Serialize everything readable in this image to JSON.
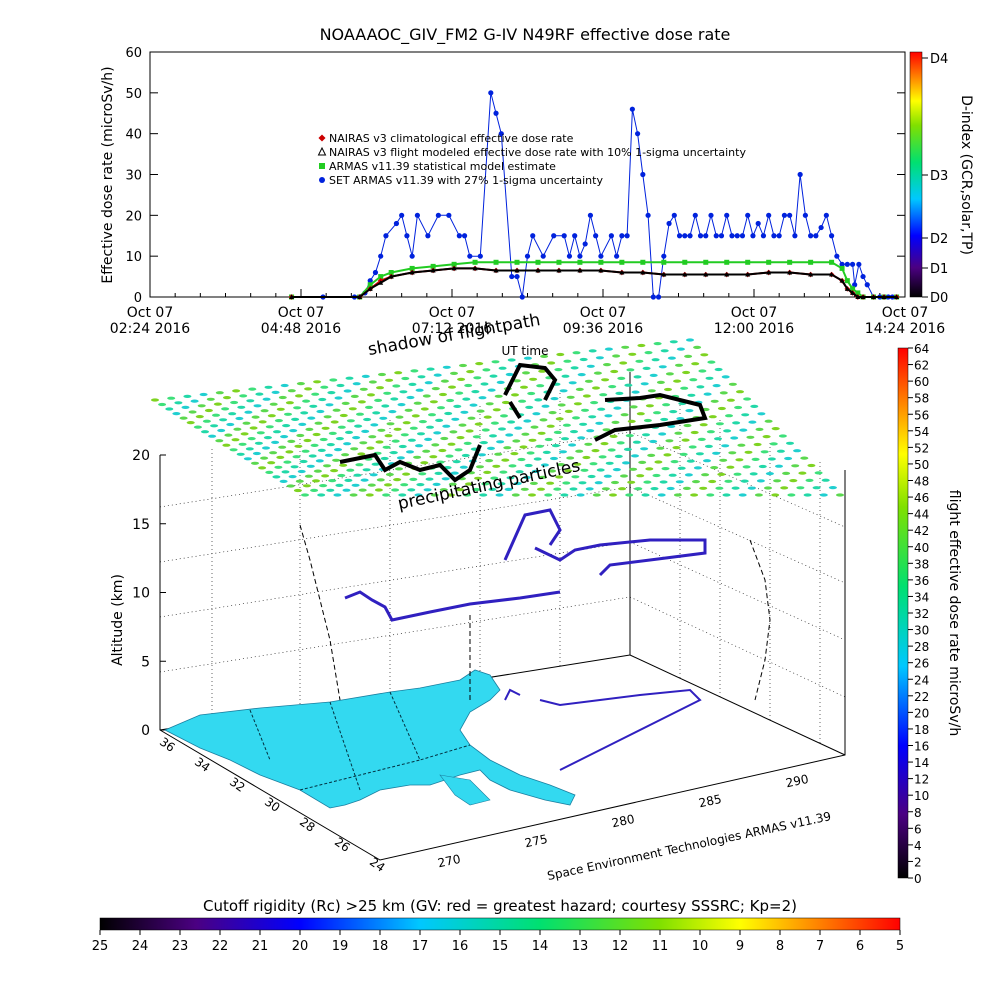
{
  "chart_data": [
    {
      "type": "line",
      "title": "NOAAAOC_GIV_FM2  G-IV    N49RF  effective dose rate",
      "ylabel": "Effective dose rate (microSv/h)",
      "xlabel": "UT time",
      "y2label": "D-index (GCR,solar,TP)",
      "ylim": [
        0,
        60
      ],
      "yticks": [
        "0",
        "10",
        "20",
        "30",
        "40",
        "50",
        "60"
      ],
      "xlim": [
        0,
        720
      ],
      "xticks": [
        {
          "x": 0,
          "date": "Oct 07",
          "time": "02:24 2016"
        },
        {
          "x": 144,
          "date": "Oct 07",
          "time": "04:48 2016"
        },
        {
          "x": 288,
          "date": "Oct 07",
          "time": "07:12 2016"
        },
        {
          "x": 432,
          "date": "Oct 07",
          "time": "09:36 2016"
        },
        {
          "x": 576,
          "date": "Oct 07",
          "time": "12:00 2016"
        },
        {
          "x": 720,
          "date": "Oct 07",
          "time": "14:24 2016"
        }
      ],
      "dindex_labels": [
        "D4",
        "D3",
        "D2",
        "D1",
        "D0"
      ],
      "legend": [
        {
          "label": "NAIRAS v3 climatological effective dose rate",
          "color": "#cc0000",
          "marker": "diamond"
        },
        {
          "label": "NAIRAS v3 flight modeled effective dose rate with 10% 1-sigma uncertainty",
          "color": "#000000",
          "marker": "triangle"
        },
        {
          "label": "ARMAS v11.39 statistical model estimate",
          "color": "#22cc22",
          "marker": "x"
        },
        {
          "label": "SET ARMAS v11.39 with 27% 1-sigma uncertainty",
          "color": "#0022dd",
          "marker": "dot"
        }
      ],
      "series": [
        {
          "name": "SET ARMAS v11.39 with 27% 1-sigma uncertainty",
          "x": [
            135,
            165,
            195,
            205,
            210,
            215,
            220,
            225,
            235,
            240,
            245,
            250,
            255,
            265,
            275,
            285,
            295,
            300,
            305,
            315,
            325,
            330,
            335,
            345,
            350,
            355,
            360,
            365,
            375,
            385,
            395,
            400,
            405,
            410,
            415,
            420,
            425,
            430,
            440,
            445,
            450,
            455,
            460,
            465,
            470,
            475,
            480,
            485,
            490,
            495,
            500,
            505,
            510,
            515,
            520,
            525,
            530,
            535,
            540,
            545,
            550,
            555,
            560,
            565,
            570,
            575,
            580,
            585,
            590,
            595,
            600,
            605,
            610,
            615,
            620,
            625,
            630,
            635,
            640,
            645,
            650,
            655,
            660,
            665,
            670,
            672,
            676,
            680,
            684,
            690,
            696,
            700,
            704,
            708,
            712
          ],
          "y": [
            0,
            0,
            0,
            1,
            4,
            6,
            10,
            15,
            18,
            20,
            15,
            10,
            20,
            15,
            20,
            20,
            15,
            15,
            10,
            10,
            50,
            45,
            40,
            5,
            5,
            0,
            10,
            15,
            10,
            15,
            15,
            10,
            15,
            10,
            13,
            20,
            15,
            10,
            15,
            10,
            15,
            15,
            46,
            40,
            30,
            20,
            0,
            0,
            10,
            18,
            20,
            15,
            15,
            15,
            20,
            15,
            15,
            20,
            15,
            15,
            20,
            15,
            15,
            15,
            20,
            15,
            18,
            15,
            20,
            15,
            15,
            20,
            20,
            15,
            30,
            20,
            15,
            15,
            17,
            20,
            15,
            10,
            8,
            8,
            8,
            3,
            8,
            5,
            3,
            0,
            0,
            0,
            0,
            0,
            0
          ]
        },
        {
          "name": "ARMAS v11.39 statistical model estimate",
          "x": [
            135,
            200,
            210,
            220,
            230,
            250,
            270,
            290,
            310,
            330,
            350,
            370,
            390,
            410,
            430,
            450,
            470,
            490,
            510,
            530,
            550,
            570,
            590,
            610,
            630,
            650,
            660,
            665,
            670,
            675,
            680,
            690,
            700,
            712
          ],
          "y": [
            0,
            0,
            3,
            5,
            6,
            7,
            7.5,
            8,
            8.5,
            8.5,
            8.5,
            8.5,
            8.5,
            8.5,
            8.5,
            8.5,
            8.5,
            8.5,
            8.5,
            8.5,
            8.5,
            8.5,
            8.5,
            8.5,
            8.5,
            8.5,
            7,
            4,
            2,
            1,
            0,
            0,
            0,
            0
          ]
        },
        {
          "name": "NAIRAS v3 climatological effective dose rate",
          "x": [
            135,
            200,
            210,
            220,
            230,
            250,
            270,
            290,
            310,
            330,
            350,
            370,
            390,
            410,
            430,
            450,
            470,
            490,
            510,
            530,
            550,
            570,
            590,
            610,
            630,
            650,
            660,
            665,
            670,
            675,
            680,
            690,
            700,
            712
          ],
          "y": [
            0,
            0,
            2,
            4,
            5,
            6,
            6.5,
            7,
            7,
            6.5,
            6.5,
            6.5,
            6.5,
            6.5,
            6.5,
            6,
            6,
            5.5,
            5.5,
            5.5,
            5.5,
            5.5,
            6,
            6,
            5.5,
            5.5,
            4,
            2,
            1,
            0,
            0,
            0,
            0,
            0
          ]
        },
        {
          "name": "NAIRAS v3 flight modeled effective dose rate with 10% 1-sigma uncertainty",
          "x": [
            135,
            200,
            210,
            220,
            230,
            250,
            270,
            290,
            310,
            330,
            350,
            370,
            390,
            410,
            430,
            450,
            470,
            490,
            510,
            530,
            550,
            570,
            590,
            610,
            630,
            650,
            660,
            665,
            670,
            675,
            680,
            690,
            700,
            712
          ],
          "y": [
            0,
            0,
            2,
            3.5,
            5,
            6,
            6.5,
            7,
            7,
            6.5,
            6.5,
            6.5,
            6.5,
            6.5,
            6.5,
            6,
            6,
            5.5,
            5.5,
            5.5,
            5.5,
            5.5,
            6,
            6,
            5.5,
            5.5,
            4,
            2,
            1,
            0,
            0,
            0,
            0,
            0
          ]
        }
      ]
    },
    {
      "type": "heatmap",
      "zlabel": "Altitude (km)",
      "zticks": [
        "0",
        "5",
        "10",
        "15",
        "20"
      ],
      "lat_ticks": [
        "36",
        "34",
        "32",
        "30",
        "28",
        "26",
        "24"
      ],
      "lon_ticks": [
        "270",
        "275",
        "280",
        "285",
        "290"
      ],
      "annotations": {
        "shadow_flightpath": "shadow of flightpath",
        "precipitating": "precipitating particles",
        "credit": "Space Environment Technologies ARMAS v11.39"
      },
      "right_colorbar": {
        "label": "flight effective dose rate microSv/h",
        "ticks": [
          "0",
          "2",
          "4",
          "6",
          "8",
          "10",
          "12",
          "14",
          "16",
          "18",
          "20",
          "22",
          "24",
          "26",
          "28",
          "30",
          "32",
          "34",
          "36",
          "38",
          "40",
          "42",
          "44",
          "46",
          "48",
          "50",
          "52",
          "54",
          "56",
          "58",
          "60",
          "62",
          "64"
        ]
      },
      "bottom_colorbar": {
        "title": "Cutoff rigidity (Rc) >25 km (GV: red = greatest hazard; courtesy SSSRC; Kp=2)",
        "ticks": [
          "25",
          "24",
          "23",
          "22",
          "21",
          "20",
          "19",
          "18",
          "17",
          "16",
          "15",
          "14",
          "13",
          "12",
          "11",
          "10",
          "9",
          "8",
          "7",
          "6",
          "5"
        ]
      }
    }
  ]
}
